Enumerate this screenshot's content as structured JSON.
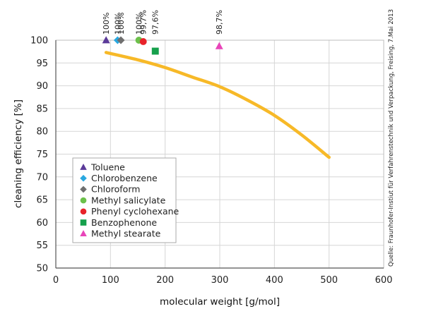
{
  "chart_data": {
    "type": "scatter",
    "xlabel": "molecular weight [g/mol]",
    "ylabel": "cleaning efficiency [%]",
    "xlim": [
      0,
      600
    ],
    "ylim": [
      50,
      100
    ],
    "xticks": [
      0,
      100,
      200,
      300,
      400,
      500,
      600
    ],
    "yticks": [
      50,
      55,
      60,
      65,
      70,
      75,
      80,
      85,
      90,
      95,
      100
    ],
    "grid": true,
    "legend_position": "bottom-left",
    "series": [
      {
        "name": "Toluene",
        "marker": "triangle",
        "color": "#5b3a99",
        "x": 92,
        "y": 100,
        "label": "100%"
      },
      {
        "name": "Chlorobenzene",
        "marker": "diamond",
        "color": "#29a8e0",
        "x": 113,
        "y": 100,
        "label": "100%"
      },
      {
        "name": "Chloroform",
        "marker": "diamond",
        "color": "#6f6f6f",
        "x": 119,
        "y": 100,
        "label": "100%"
      },
      {
        "name": "Methyl salicylate",
        "marker": "circle",
        "color": "#6cc04a",
        "x": 152,
        "y": 100,
        "label": "100%"
      },
      {
        "name": "Phenyl cyclohexane",
        "marker": "circle",
        "color": "#e8232a",
        "x": 160,
        "y": 99.7,
        "label": "99,7%"
      },
      {
        "name": "Benzophenone",
        "marker": "square",
        "color": "#16a04c",
        "x": 182,
        "y": 97.6,
        "label": "97,6%"
      },
      {
        "name": "Methyl stearate",
        "marker": "triangle",
        "color": "#e845b9",
        "x": 299,
        "y": 98.7,
        "label": "98,7%"
      }
    ],
    "trend_curve": {
      "color": "#f7b928",
      "points": [
        [
          92,
          97.3
        ],
        [
          150,
          95.7
        ],
        [
          200,
          94.0
        ],
        [
          250,
          91.9
        ],
        [
          300,
          89.8
        ],
        [
          350,
          86.9
        ],
        [
          400,
          83.5
        ],
        [
          450,
          79.2
        ],
        [
          500,
          74.3
        ]
      ]
    },
    "source_note": "Quelle: Fraunhofer-Instiut für Verfahrenstechnik und Verpackung, Freising, 7.Mai 2013"
  }
}
